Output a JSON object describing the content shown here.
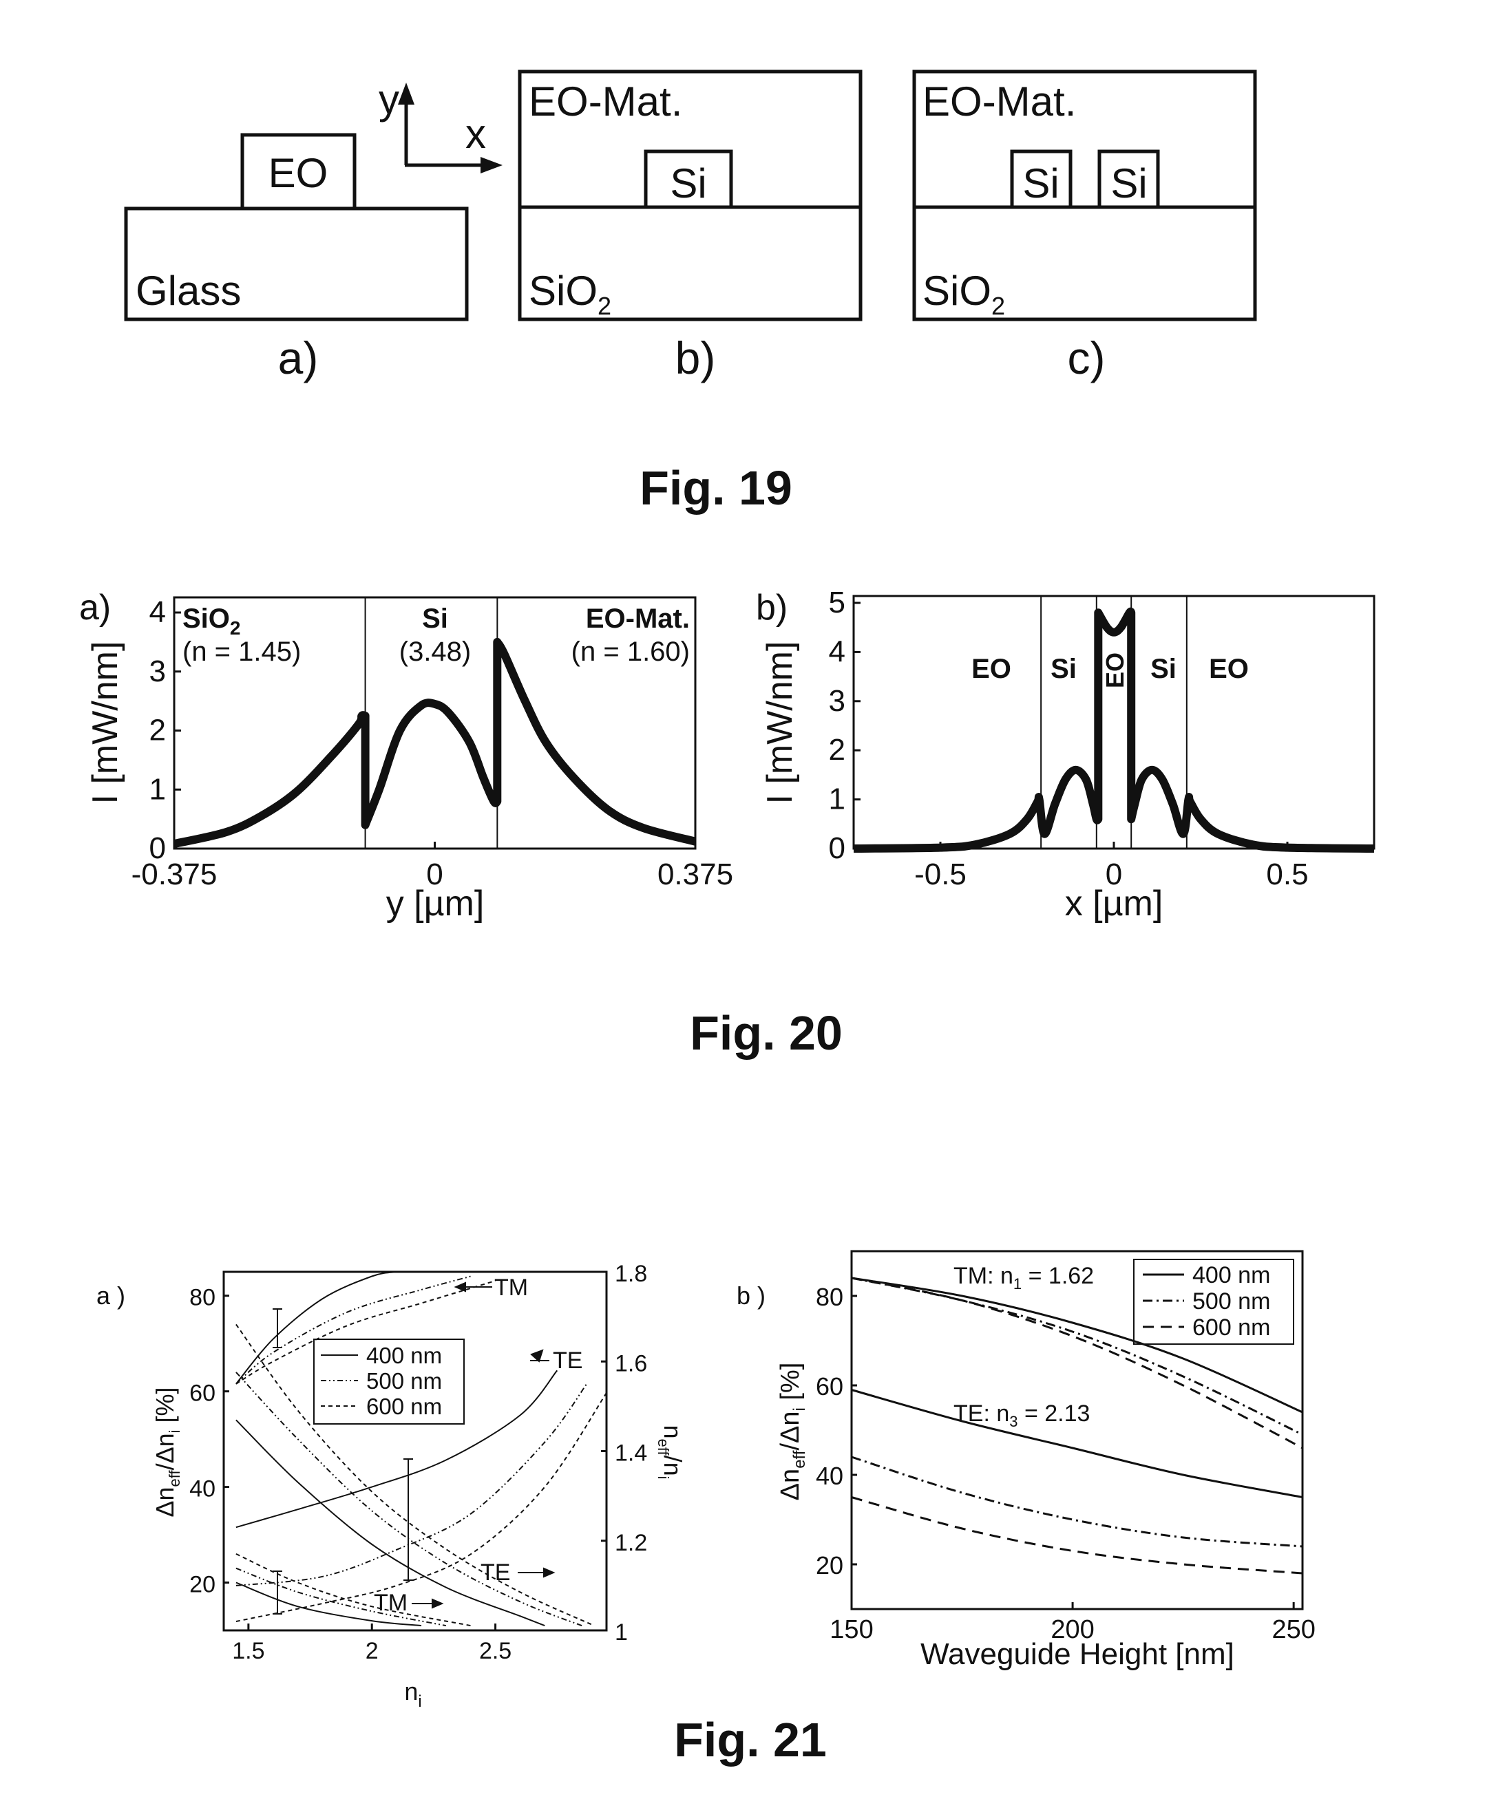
{
  "fig19": {
    "caption": "Fig. 19",
    "a": {
      "label": "a)",
      "substrate": "Glass",
      "core": "EO"
    },
    "b": {
      "label": "b)",
      "cladding": "EO-Mat.",
      "core": "Si",
      "substrate": "SiO",
      "substrate_sub": "2"
    },
    "c": {
      "label": "c)",
      "cladding": "EO-Mat.",
      "core_left": "Si",
      "core_right": "Si",
      "substrate": "SiO",
      "substrate_sub": "2"
    },
    "axes": {
      "y": "y",
      "x": "x"
    }
  },
  "fig20": {
    "caption": "Fig. 20",
    "a": {
      "panel_label": "a)",
      "ylabel": "I [mW/nm]",
      "xlabel": "y [µm]",
      "xticks": [
        "-0.375",
        "0",
        "0.375"
      ],
      "yticks": [
        "0",
        "1",
        "2",
        "3",
        "4"
      ],
      "regions": [
        {
          "name": "SiO",
          "sub": "2",
          "value": "(n = 1.45)"
        },
        {
          "name": "Si",
          "sub": "",
          "value": "(3.48)"
        },
        {
          "name": "EO-Mat.",
          "sub": "",
          "value": "(n = 1.60)"
        }
      ]
    },
    "b": {
      "panel_label": "b)",
      "ylabel": "I [mW/nm]",
      "xlabel": "x [µm]",
      "xticks": [
        "-0.5",
        "0",
        "0.5"
      ],
      "yticks": [
        "0",
        "1",
        "2",
        "3",
        "4",
        "5"
      ],
      "regions": [
        "EO",
        "Si",
        "EO",
        "Si",
        "EO"
      ]
    }
  },
  "fig21": {
    "caption": "Fig. 21",
    "a": {
      "panel_label": "a )",
      "xlabel": "n",
      "xlabel_sub": "i",
      "ylabel_left": "Δn",
      "ylabel_left_sub1": "eff",
      "ylabel_left_mid": "/Δn",
      "ylabel_left_sub2": "i",
      "ylabel_left_unit": " [%]",
      "ylabel_right": "n",
      "ylabel_right_sub1": "eff",
      "ylabel_right_mid": "/n",
      "ylabel_right_sub2": "i",
      "xticks": [
        "1.5",
        "2",
        "2.5"
      ],
      "yticks_left": [
        "20",
        "40",
        "60",
        "80"
      ],
      "yticks_right": [
        "1",
        "1.2",
        "1.4",
        "1.6",
        "1.8"
      ],
      "annotations": [
        "TM",
        "TE",
        "TE",
        "TM"
      ],
      "legend": [
        "400 nm",
        "500 nm",
        "600 nm"
      ]
    },
    "b": {
      "panel_label": "b )",
      "xlabel": "Waveguide Height [nm]",
      "ylabel": "Δn",
      "ylabel_sub1": "eff",
      "ylabel_mid": "/Δn",
      "ylabel_sub2": "i",
      "ylabel_unit": " [%]",
      "xticks": [
        "150",
        "200",
        "250"
      ],
      "yticks": [
        "20",
        "40",
        "60",
        "80"
      ],
      "tm_label": "TM: n",
      "tm_sub": "1",
      "tm_value": " = 1.62",
      "te_label": "TE: n",
      "te_sub": "3",
      "te_value": " = 2.13",
      "legend": [
        "400 nm",
        "500 nm",
        "600 nm"
      ]
    }
  },
  "chart_data": [
    {
      "type": "line",
      "title": "",
      "xlabel": "y [µm]",
      "ylabel": "I [mW/nm]",
      "xlim": [
        -0.375,
        0.375
      ],
      "ylim": [
        0,
        4
      ],
      "series": [
        {
          "x": [
            -0.375,
            -0.3,
            -0.25,
            -0.2,
            -0.15,
            -0.11,
            -0.105,
            -0.1,
            -0.08,
            -0.05,
            -0.02,
            0.0,
            0.02,
            0.05,
            0.07,
            0.085,
            0.09,
            0.1,
            0.13,
            0.16,
            0.2,
            0.25,
            0.3,
            0.375
          ],
          "y": [
            0.08,
            0.28,
            0.55,
            0.95,
            1.55,
            2.1,
            2.25,
            0.4,
            1.0,
            2.0,
            2.42,
            2.45,
            2.3,
            1.8,
            1.2,
            0.8,
            3.5,
            3.3,
            2.5,
            1.8,
            1.2,
            0.65,
            0.35,
            0.12
          ]
        }
      ]
    },
    {
      "type": "line",
      "title": "",
      "xlabel": "x [µm]",
      "ylabel": "I [mW/nm]",
      "xlim": [
        -0.75,
        0.75
      ],
      "ylim": [
        0,
        5
      ],
      "series": [
        {
          "x": [
            -0.75,
            -0.5,
            -0.4,
            -0.3,
            -0.25,
            -0.22,
            -0.215,
            -0.2,
            -0.17,
            -0.14,
            -0.11,
            -0.08,
            -0.06,
            -0.05,
            -0.045,
            -0.02,
            0.0,
            0.02,
            0.045,
            0.05,
            0.06,
            0.08,
            0.11,
            0.14,
            0.17,
            0.2,
            0.215,
            0.22,
            0.25,
            0.3,
            0.4,
            0.5,
            0.75
          ],
          "y": [
            0.0,
            0.02,
            0.08,
            0.3,
            0.6,
            0.95,
            1.0,
            0.3,
            0.9,
            1.4,
            1.6,
            1.4,
            0.9,
            0.6,
            4.8,
            4.5,
            4.4,
            4.5,
            4.8,
            0.6,
            0.9,
            1.4,
            1.6,
            1.4,
            0.9,
            0.3,
            1.0,
            0.95,
            0.6,
            0.3,
            0.08,
            0.02,
            0.0
          ]
        }
      ]
    },
    {
      "type": "line",
      "title": "",
      "xlabel": "n_i",
      "ylabel": "Δn_eff/Δn_i [%]",
      "ylabel_right": "n_eff/n_i",
      "xlim": [
        1.4,
        2.95
      ],
      "ylim": [
        10,
        85
      ],
      "ylim_right": [
        1,
        1.8
      ],
      "legend": [
        "400 nm",
        "500 nm",
        "600 nm"
      ],
      "series": [
        {
          "name": "400 nm",
          "axis": "right",
          "x": [
            1.45,
            1.6,
            1.8,
            2.0,
            2.1
          ],
          "y": [
            1.55,
            1.65,
            1.74,
            1.79,
            1.8
          ]
        },
        {
          "name": "500 nm",
          "axis": "right",
          "x": [
            1.45,
            1.6,
            1.9,
            2.2,
            2.4
          ],
          "y": [
            1.55,
            1.62,
            1.71,
            1.76,
            1.79
          ]
        },
        {
          "name": "600 nm",
          "axis": "right",
          "x": [
            1.45,
            1.6,
            1.9,
            2.2,
            2.5
          ],
          "y": [
            1.55,
            1.6,
            1.68,
            1.73,
            1.78
          ]
        },
        {
          "name": "400 nm",
          "axis": "right",
          "x": [
            1.45,
            1.7,
            2.0,
            2.3,
            2.6,
            2.75
          ],
          "y": [
            1.23,
            1.27,
            1.32,
            1.38,
            1.48,
            1.58
          ]
        },
        {
          "name": "500 nm",
          "axis": "right",
          "x": [
            1.45,
            1.8,
            2.1,
            2.4,
            2.7,
            2.87
          ],
          "y": [
            1.1,
            1.12,
            1.18,
            1.26,
            1.42,
            1.55
          ]
        },
        {
          "name": "600 nm",
          "axis": "right",
          "x": [
            1.45,
            1.8,
            2.1,
            2.4,
            2.7,
            2.95
          ],
          "y": [
            1.02,
            1.06,
            1.1,
            1.17,
            1.32,
            1.53
          ]
        },
        {
          "name": "400 nm",
          "axis": "left",
          "x": [
            1.45,
            1.7,
            2.0,
            2.3,
            2.6,
            2.7
          ],
          "y": [
            54,
            41,
            28,
            19,
            13,
            11
          ]
        },
        {
          "name": "500 nm",
          "axis": "left",
          "x": [
            1.45,
            1.7,
            2.0,
            2.3,
            2.6,
            2.85
          ],
          "y": [
            64,
            50,
            35,
            24,
            16,
            11
          ]
        },
        {
          "name": "600 nm",
          "axis": "left",
          "x": [
            1.45,
            1.7,
            2.0,
            2.3,
            2.6,
            2.9
          ],
          "y": [
            74,
            56,
            39,
            27,
            18,
            11
          ]
        },
        {
          "name": "400 nm",
          "axis": "left",
          "x": [
            1.45,
            1.7,
            2.0,
            2.2
          ],
          "y": [
            20,
            15,
            12,
            11
          ]
        },
        {
          "name": "500 nm",
          "axis": "left",
          "x": [
            1.45,
            1.7,
            2.0,
            2.3
          ],
          "y": [
            23,
            18,
            14,
            11
          ]
        },
        {
          "name": "600 nm",
          "axis": "left",
          "x": [
            1.45,
            1.7,
            2.0,
            2.4
          ],
          "y": [
            26,
            20,
            15,
            11
          ]
        }
      ]
    },
    {
      "type": "line",
      "title": "",
      "xlabel": "Waveguide Height [nm]",
      "ylabel": "Δn_eff/Δn_i [%]",
      "xlim": [
        150,
        252
      ],
      "ylim": [
        10,
        90
      ],
      "legend": [
        "400 nm",
        "500 nm",
        "600 nm"
      ],
      "series": [
        {
          "name": "400 nm",
          "x": [
            150,
            175,
            200,
            225,
            252
          ],
          "y": [
            84,
            80,
            74,
            66,
            54
          ]
        },
        {
          "name": "500 nm",
          "x": [
            150,
            175,
            200,
            225,
            252
          ],
          "y": [
            84,
            79,
            72,
            62,
            49
          ]
        },
        {
          "name": "600 nm",
          "x": [
            150,
            175,
            200,
            225,
            252
          ],
          "y": [
            84,
            79,
            71,
            60,
            46
          ]
        },
        {
          "name": "400 nm",
          "x": [
            150,
            175,
            200,
            225,
            252
          ],
          "y": [
            59,
            52,
            46,
            40,
            35
          ]
        },
        {
          "name": "500 nm",
          "x": [
            150,
            175,
            200,
            225,
            252
          ],
          "y": [
            44,
            36,
            30,
            26,
            24
          ]
        },
        {
          "name": "600 nm",
          "x": [
            150,
            175,
            200,
            225,
            252
          ],
          "y": [
            35,
            28,
            23,
            20,
            18
          ]
        }
      ]
    }
  ]
}
